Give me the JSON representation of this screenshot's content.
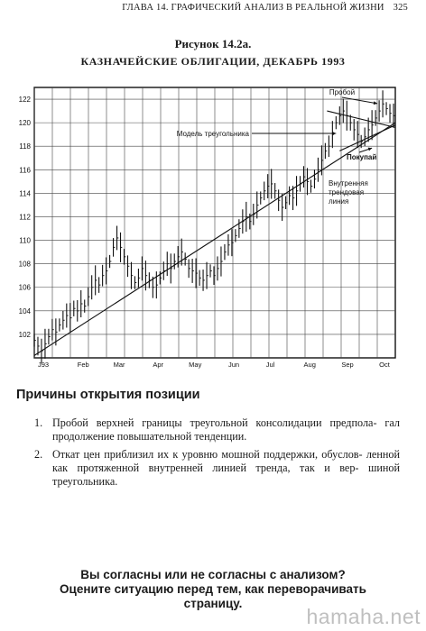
{
  "header": {
    "running_title": "ГЛАВА 14. ГРАФИЧЕСКИЙ АНАЛИЗ В РЕАЛЬНОЙ ЖИЗНИ",
    "page_number": "325"
  },
  "figure": {
    "label": "Рисунок 14.2а.",
    "caption": "КАЗНАЧЕЙСКИЕ ОБЛИГАЦИИ, ДЕКАБРЬ 1993"
  },
  "chart_data": {
    "type": "bar",
    "title": "КАЗНАЧЕЙСКИЕ ОБЛИГАЦИИ, ДЕКАБРЬ 1993",
    "xlabel": "",
    "ylabel": "",
    "ylim": [
      100,
      123
    ],
    "yticks": [
      102,
      104,
      106,
      108,
      110,
      112,
      114,
      116,
      118,
      120,
      122
    ],
    "ytick_labels": [
      "102",
      "104",
      "106",
      "108",
      "110",
      "112",
      "114",
      "116",
      "118",
      "120",
      "122"
    ],
    "x_tick_labels": [
      "J93",
      "Feb",
      "Mar",
      "Apr",
      "May",
      "Jun",
      "Jul",
      "Aug",
      "Sep",
      "Oct"
    ],
    "grid": true,
    "series": [
      {
        "kind": "ohlc_price_bars",
        "points": [
          [
            0,
            101.5
          ],
          [
            2,
            101.0
          ],
          [
            4,
            100.6
          ],
          [
            6,
            101.2
          ],
          [
            8,
            101.8
          ],
          [
            10,
            102.4
          ],
          [
            12,
            102.2
          ],
          [
            14,
            102.8
          ],
          [
            16,
            103.2
          ],
          [
            18,
            103.6
          ],
          [
            20,
            103.4
          ],
          [
            22,
            104.2
          ],
          [
            24,
            104.0
          ],
          [
            26,
            104.6
          ],
          [
            28,
            104.4
          ],
          [
            30,
            105.2
          ],
          [
            32,
            106.0
          ],
          [
            34,
            106.6
          ],
          [
            36,
            106.2
          ],
          [
            38,
            107.0
          ],
          [
            40,
            107.4
          ],
          [
            42,
            108.2
          ],
          [
            44,
            109.4
          ],
          [
            46,
            110.2
          ],
          [
            48,
            109.4
          ],
          [
            50,
            108.6
          ],
          [
            52,
            107.8
          ],
          [
            54,
            107.0
          ],
          [
            56,
            106.4
          ],
          [
            58,
            106.8
          ],
          [
            60,
            107.6
          ],
          [
            62,
            107.0
          ],
          [
            64,
            106.6
          ],
          [
            66,
            106.0
          ],
          [
            68,
            106.2
          ],
          [
            70,
            106.8
          ],
          [
            72,
            107.4
          ],
          [
            74,
            108.0
          ],
          [
            76,
            107.6
          ],
          [
            78,
            108.2
          ],
          [
            80,
            108.6
          ],
          [
            82,
            109.0
          ],
          [
            84,
            108.4
          ],
          [
            86,
            107.6
          ],
          [
            88,
            107.4
          ],
          [
            90,
            107.2
          ],
          [
            92,
            106.8
          ],
          [
            94,
            106.6
          ],
          [
            96,
            107.0
          ],
          [
            98,
            107.4
          ],
          [
            100,
            107.0
          ],
          [
            102,
            107.6
          ],
          [
            104,
            108.2
          ],
          [
            106,
            109.0
          ],
          [
            108,
            109.6
          ],
          [
            110,
            109.8
          ],
          [
            112,
            110.4
          ],
          [
            114,
            111.0
          ],
          [
            116,
            111.6
          ],
          [
            118,
            112.0
          ],
          [
            120,
            111.6
          ],
          [
            122,
            112.2
          ],
          [
            124,
            113.0
          ],
          [
            126,
            113.6
          ],
          [
            128,
            114.2
          ],
          [
            130,
            114.6
          ],
          [
            132,
            114.8
          ],
          [
            134,
            114.2
          ],
          [
            136,
            113.4
          ],
          [
            138,
            112.8
          ],
          [
            140,
            113.2
          ],
          [
            142,
            113.8
          ],
          [
            144,
            113.6
          ],
          [
            146,
            114.2
          ],
          [
            148,
            114.8
          ],
          [
            150,
            115.4
          ],
          [
            152,
            115.0
          ],
          [
            154,
            114.6
          ],
          [
            156,
            115.2
          ],
          [
            158,
            116.0
          ],
          [
            160,
            116.8
          ],
          [
            162,
            117.6
          ],
          [
            164,
            118.0
          ],
          [
            166,
            119.0
          ],
          [
            168,
            120.0
          ],
          [
            170,
            120.6
          ],
          [
            172,
            121.0
          ],
          [
            174,
            120.6
          ],
          [
            176,
            120.0
          ],
          [
            178,
            119.4
          ],
          [
            180,
            119.0
          ],
          [
            182,
            118.4
          ],
          [
            184,
            118.8
          ],
          [
            186,
            119.4
          ],
          [
            188,
            119.8
          ],
          [
            190,
            120.4
          ],
          [
            192,
            121.0
          ],
          [
            194,
            121.6
          ],
          [
            196,
            121.2
          ],
          [
            198,
            120.8
          ],
          [
            200,
            120.6
          ]
        ]
      },
      {
        "kind": "trendline",
        "name": "Внутренняя трендовая линия",
        "points": [
          [
            0,
            100.2
          ],
          [
            201,
            120.0
          ]
        ]
      },
      {
        "kind": "triangle_upper",
        "points": [
          [
            163,
            121.0
          ],
          [
            201,
            119.6
          ]
        ]
      },
      {
        "kind": "triangle_lower",
        "points": [
          [
            170,
            117.6
          ],
          [
            201,
            119.8
          ]
        ]
      }
    ],
    "annotations": [
      {
        "text": "Пробой",
        "value": [
          191,
          121.4
        ]
      },
      {
        "text": "Модель треугольника",
        "value": [
          170,
          119.7
        ]
      },
      {
        "text": "Покупай",
        "value": [
          186,
          118.0
        ]
      },
      {
        "text": "Внутренняя трендовая линия",
        "value": [
          182,
          116.8
        ]
      }
    ]
  },
  "section": {
    "heading": "Причины открытия позиции",
    "items": [
      {
        "num": "1.",
        "text": "Пробой верхней границы треугольной консолидации предпола- гал продолжение повышательной тенденции."
      },
      {
        "num": "2.",
        "text": "Откат цен приблизил их к уровню мошной поддержки, обуслов- ленной как протяженной внутренней линией тренда, так и вер- шиной треугольника."
      }
    ]
  },
  "question": {
    "line1": "Вы согласны или не согласны с анализом?",
    "line2": "Оцените ситуацию перед тем, как переворачивать",
    "line3": "страницу."
  },
  "watermark": "hamaha.net"
}
